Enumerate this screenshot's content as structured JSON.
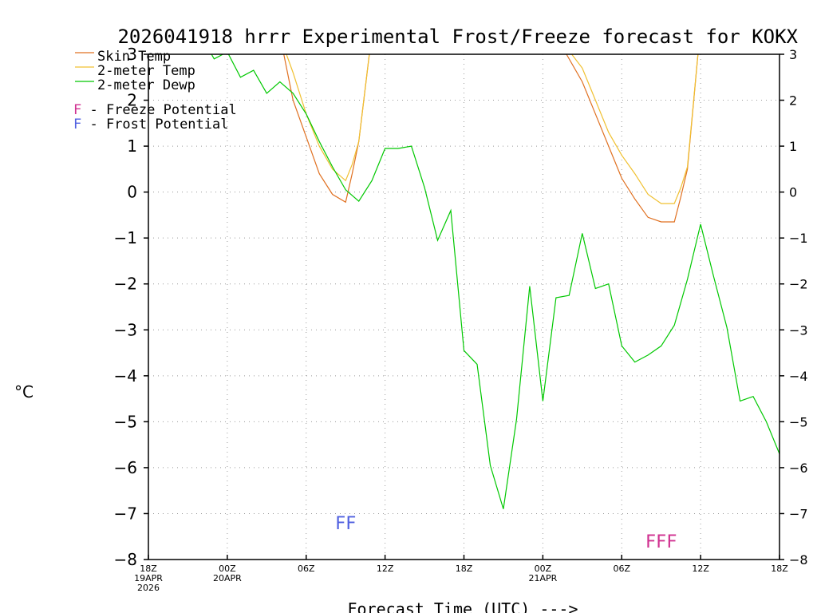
{
  "chart_data": {
    "type": "line",
    "title": "2026041918 hrrr Experimental Frost/Freeze forecast for KOKX",
    "ylabel": "°C",
    "xlabel": "Forecast Time (UTC) --->",
    "ylim": [
      -8,
      3
    ],
    "xlim": [
      0,
      48
    ],
    "yticks": [
      "3",
      "2",
      "1",
      "0",
      "−1",
      "−2",
      "−3",
      "−4",
      "−5",
      "−6",
      "−7",
      "−8"
    ],
    "ytick_values": [
      3,
      2,
      1,
      0,
      -1,
      -2,
      -3,
      -4,
      -5,
      -6,
      -7,
      -8
    ],
    "xticks": [
      {
        "hour": 0,
        "lines": [
          "18Z",
          "19APR",
          "2026"
        ]
      },
      {
        "hour": 6,
        "lines": [
          "00Z",
          "20APR"
        ]
      },
      {
        "hour": 12,
        "lines": [
          "06Z"
        ]
      },
      {
        "hour": 18,
        "lines": [
          "12Z"
        ]
      },
      {
        "hour": 24,
        "lines": [
          "18Z"
        ]
      },
      {
        "hour": 30,
        "lines": [
          "00Z",
          "21APR"
        ]
      },
      {
        "hour": 36,
        "lines": [
          "06Z"
        ]
      },
      {
        "hour": 42,
        "lines": [
          "12Z"
        ]
      },
      {
        "hour": 48,
        "lines": [
          "18Z"
        ]
      }
    ],
    "grid": true,
    "series": [
      {
        "name": "Skin Temp",
        "color": "#e07020",
        "x": [
          10.3,
          11,
          12,
          13,
          14,
          15,
          15.5,
          16,
          16.8,
          31.8,
          33,
          34,
          35,
          36,
          37,
          38,
          39,
          40,
          40.5,
          41,
          41.8
        ],
        "y": [
          3,
          2,
          1.2,
          0.4,
          -0.05,
          -0.22,
          0.4,
          1.1,
          3,
          3,
          2.4,
          1.7,
          1.0,
          0.3,
          -0.15,
          -0.55,
          -0.65,
          -0.65,
          -0.1,
          0.5,
          3
        ]
      },
      {
        "name": "2-meter Temp",
        "color": "#f0c030",
        "x": [
          10.5,
          11,
          12,
          13,
          14,
          15,
          15.5,
          16,
          16.8,
          32.2,
          33,
          34,
          35,
          36,
          37,
          38,
          39,
          40,
          40.5,
          41,
          41.8
        ],
        "y": [
          3,
          2.6,
          1.7,
          1.0,
          0.5,
          0.25,
          0.6,
          1.1,
          3,
          3,
          2.7,
          2.0,
          1.3,
          0.8,
          0.4,
          -0.05,
          -0.25,
          -0.25,
          0.1,
          0.55,
          3
        ]
      },
      {
        "name": "2-meter Dewp",
        "color": "#00c800",
        "x": [
          4.8,
          5,
          6,
          7,
          8,
          9,
          10,
          11,
          12,
          13,
          14,
          15,
          16,
          17,
          18,
          19,
          20,
          21,
          22,
          23,
          24,
          25,
          26,
          27,
          28,
          29,
          30,
          31,
          32,
          33,
          34,
          35,
          36,
          37,
          38,
          39,
          40,
          41,
          42,
          43,
          44,
          45,
          46,
          47,
          48
        ],
        "y": [
          3,
          2.9,
          3.05,
          2.5,
          2.65,
          2.15,
          2.4,
          2.15,
          1.7,
          1.1,
          0.55,
          0.05,
          -0.2,
          0.25,
          0.95,
          0.95,
          1.0,
          0.1,
          -1.05,
          -0.4,
          -3.45,
          -3.75,
          -5.95,
          -6.9,
          -4.95,
          -2.05,
          -4.55,
          -2.3,
          -2.25,
          -0.9,
          -2.1,
          -2.0,
          -3.35,
          -3.7,
          -3.55,
          -3.35,
          -2.9,
          -1.9,
          -0.7,
          -1.85,
          -2.95,
          -4.55,
          -4.45,
          -5.0,
          -5.7
        ]
      }
    ],
    "legend": [
      {
        "text": "Skin Temp",
        "color": "#e07020"
      },
      {
        "text": "2-meter Temp",
        "color": "#f0c030"
      },
      {
        "text": "2-meter Dewp",
        "color": "#00c800"
      }
    ],
    "legend_potentials": [
      {
        "letter": "F",
        "text": " - Freeze Potential",
        "letter_color": "#d03090"
      },
      {
        "letter": "F",
        "text": " - Frost Potential",
        "letter_color": "#5060e0"
      }
    ],
    "annotations": [
      {
        "text": "FF",
        "color": "#5060e0",
        "hour": 15,
        "value": -7.2
      },
      {
        "text": "FFF",
        "color": "#d03090",
        "hour": 39,
        "value": -7.6
      }
    ]
  }
}
